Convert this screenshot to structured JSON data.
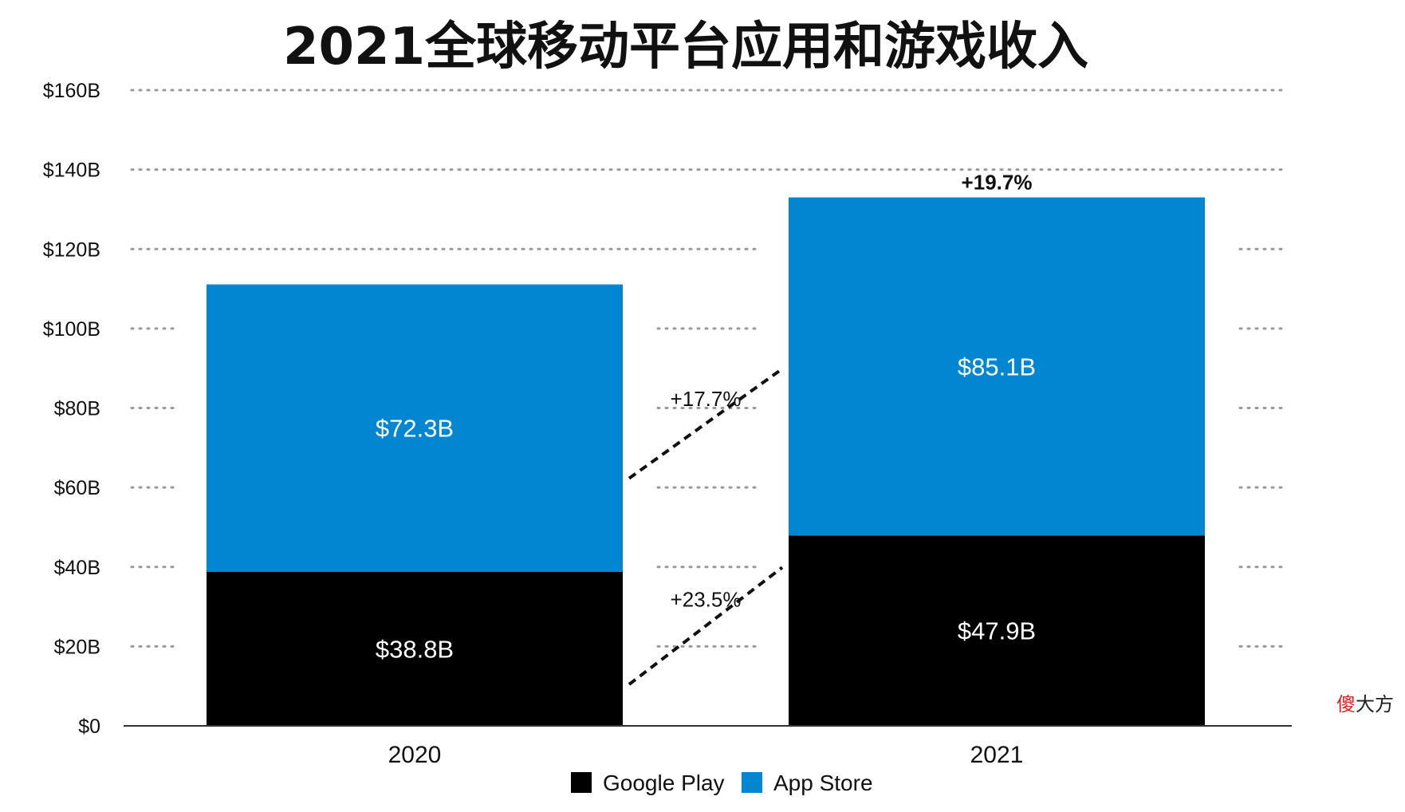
{
  "title": "2021全球移动平台应用和游戏收入",
  "watermark": {
    "first": "傻",
    "rest": "大方"
  },
  "chart_data": {
    "type": "bar",
    "stacked": true,
    "categories": [
      "2020",
      "2021"
    ],
    "series": [
      {
        "name": "Google Play",
        "values": [
          38.8,
          47.9
        ],
        "labels": [
          "$38.8B",
          "$47.9B"
        ],
        "color": "#000000"
      },
      {
        "name": "App Store",
        "values": [
          72.3,
          85.1
        ],
        "labels": [
          "$72.3B",
          "$85.1B"
        ],
        "color": "#0286d1"
      }
    ],
    "ylim": [
      0,
      160
    ],
    "yticks": [
      0,
      20,
      40,
      60,
      80,
      100,
      120,
      140,
      160
    ],
    "ytick_labels": [
      "$0",
      "$20B",
      "$40B",
      "$60B",
      "$80B",
      "$100B",
      "$120B",
      "$140B",
      "$160B"
    ],
    "grid": "dotted-horizontal",
    "legend_position": "bottom-center",
    "annotations": {
      "google_play_growth": "+23.5%",
      "app_store_growth": "+17.7%",
      "total_growth": "+19.7%"
    }
  }
}
